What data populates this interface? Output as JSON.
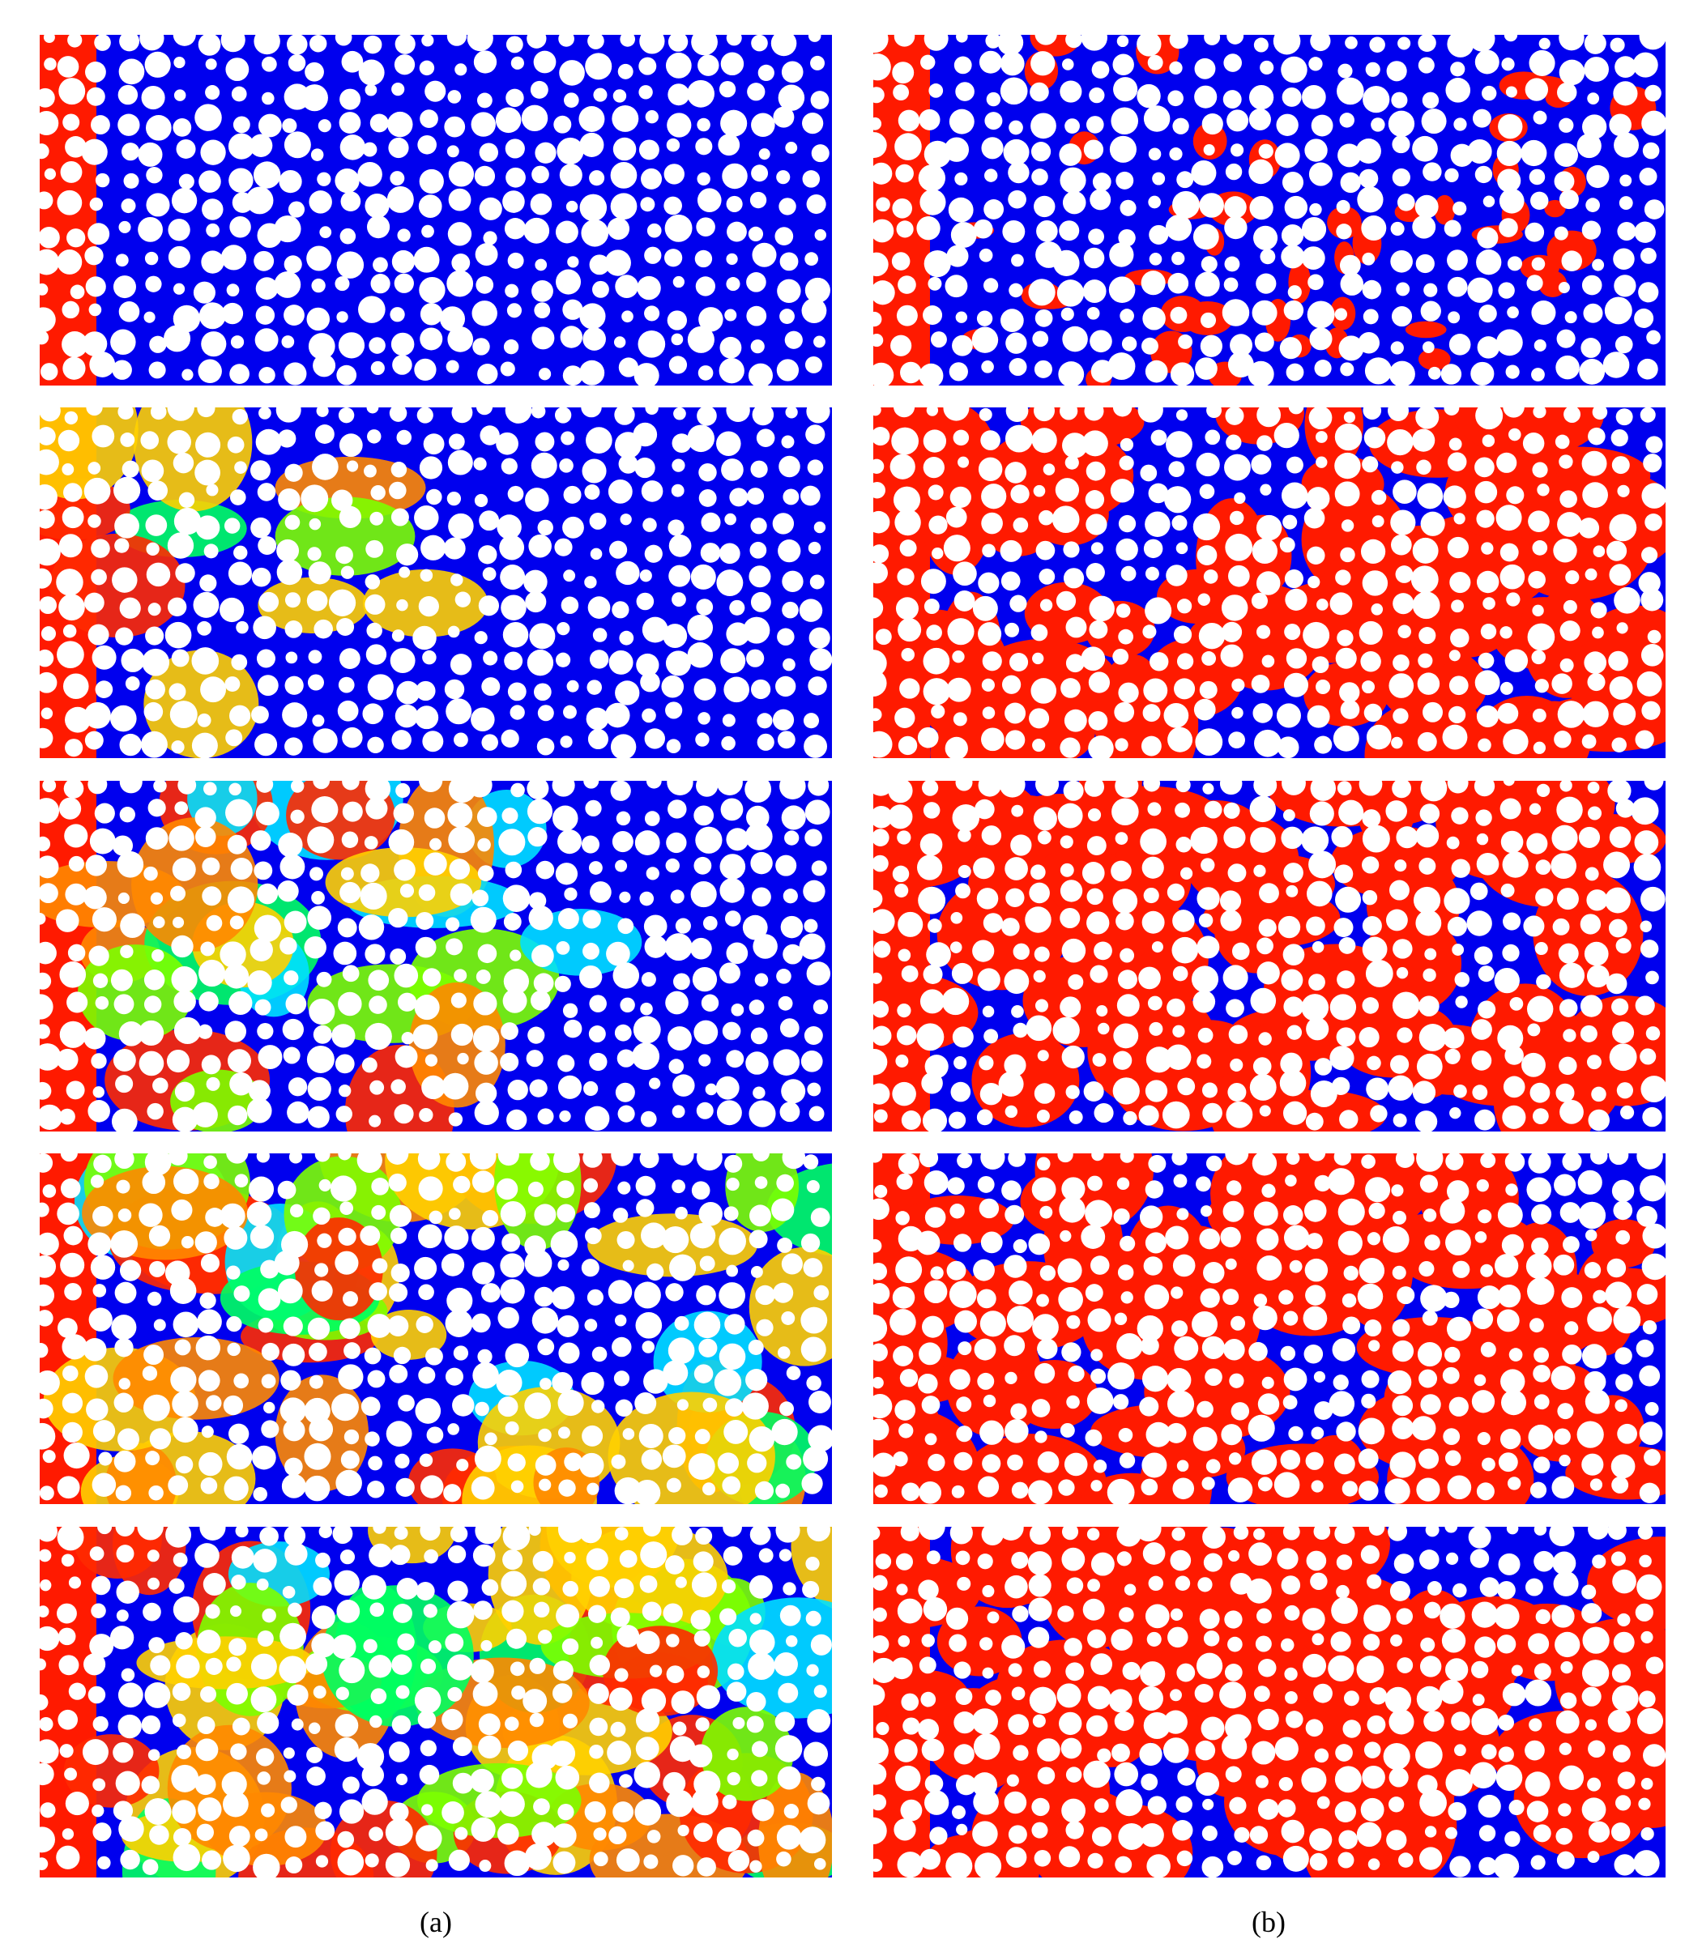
{
  "figure": {
    "labels": [
      "(a)",
      "(b)"
    ]
  }
}
